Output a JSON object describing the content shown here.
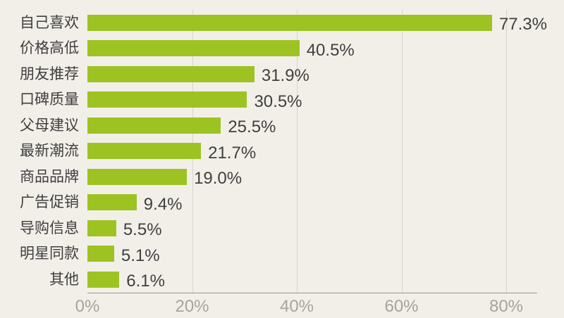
{
  "chart_data": {
    "type": "bar",
    "orientation": "horizontal",
    "title": "",
    "categories": [
      "自己喜欢",
      "价格高低",
      "朋友推荐",
      "口碑质量",
      "父母建议",
      "最新潮流",
      "商品品牌",
      "广告促销",
      "导购信息",
      "明星同款",
      "其他"
    ],
    "values": [
      77.3,
      40.5,
      31.9,
      30.5,
      25.5,
      21.7,
      19.0,
      9.4,
      5.5,
      5.1,
      6.1
    ],
    "value_labels": [
      "77.3%",
      "40.5%",
      "31.9%",
      "30.5%",
      "25.5%",
      "21.7%",
      "19.0%",
      "9.4%",
      "5.5%",
      "5.1%",
      "6.1%"
    ],
    "xlabel": "",
    "ylabel": "",
    "x_axis": {
      "range": [
        0,
        80
      ],
      "tick_values": [
        0,
        20,
        40,
        60,
        80
      ],
      "tick_labels": [
        "0%",
        "20%",
        "40%",
        "60%",
        "80%"
      ]
    },
    "grid": true,
    "legend": false,
    "colors": {
      "background": "#f2efe9",
      "bar": "#9dc322",
      "gridline": "#d8d4cc",
      "axis_line": "#9b968e",
      "data_text": "#3f3f3f",
      "tick_text": "#a8a39b"
    }
  }
}
